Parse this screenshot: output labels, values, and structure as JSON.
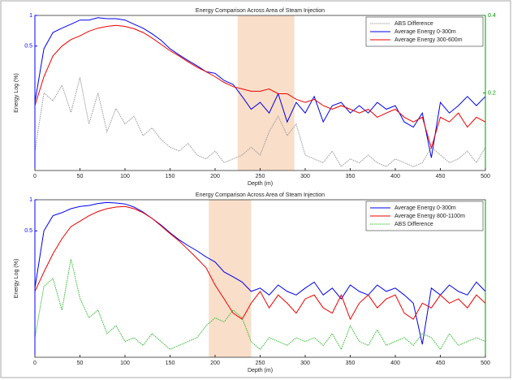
{
  "chart_data": [
    {
      "type": "line",
      "title": "Energy Comparison Across Area of Steam Injection",
      "xlabel": "Depth (m)",
      "ylabel": "Energy Log (%)",
      "x": [
        0,
        10,
        20,
        30,
        40,
        50,
        60,
        70,
        80,
        90,
        100,
        110,
        120,
        130,
        140,
        150,
        160,
        170,
        180,
        190,
        200,
        210,
        220,
        230,
        240,
        250,
        260,
        270,
        280,
        290,
        300,
        310,
        320,
        330,
        340,
        350,
        360,
        370,
        380,
        390,
        400,
        410,
        420,
        430,
        440,
        450,
        460,
        470,
        480,
        490,
        500
      ],
      "xlim": [
        0,
        500
      ],
      "xticks": [
        0,
        50,
        100,
        150,
        200,
        250,
        300,
        350,
        400,
        450,
        500
      ],
      "ylim": [
        0.03,
        1
      ],
      "yticks": [
        0.5,
        1
      ],
      "ylog": true,
      "ycolor": "#0000ff",
      "y2lim": [
        0,
        0.4
      ],
      "y2ticks": [
        0.2,
        0.4
      ],
      "y2color": "#009900",
      "highlight": [
        225,
        288
      ],
      "highlight_color": "#f8d8c0",
      "legend": "upper right",
      "series": [
        {
          "name": "ABS Difference",
          "color": "#999999",
          "style": "dotted",
          "axis": "y2",
          "values": [
            0.05,
            0.2,
            0.18,
            0.22,
            0.15,
            0.24,
            0.12,
            0.2,
            0.1,
            0.16,
            0.12,
            0.14,
            0.09,
            0.11,
            0.08,
            0.06,
            0.05,
            0.07,
            0.04,
            0.03,
            0.05,
            0.02,
            0.03,
            0.04,
            0.06,
            0.04,
            0.1,
            0.14,
            0.09,
            0.12,
            0.04,
            0.03,
            0.02,
            0.05,
            0.01,
            0.03,
            0.02,
            0.04,
            0.02,
            0.01,
            0.03,
            0.02,
            0.01,
            0.02,
            0.06,
            0.04,
            0.02,
            0.03,
            0.05,
            0.02,
            0.06
          ]
        },
        {
          "name": "Average Energy 0-300m",
          "color": "#0000ee",
          "style": "solid",
          "values": [
            0.14,
            0.47,
            0.68,
            0.75,
            0.82,
            0.9,
            0.9,
            0.95,
            0.93,
            0.93,
            0.9,
            0.82,
            0.75,
            0.66,
            0.57,
            0.47,
            0.41,
            0.36,
            0.32,
            0.28,
            0.27,
            0.23,
            0.21,
            0.16,
            0.12,
            0.14,
            0.11,
            0.17,
            0.09,
            0.14,
            0.11,
            0.16,
            0.09,
            0.13,
            0.14,
            0.11,
            0.13,
            0.11,
            0.14,
            0.12,
            0.13,
            0.09,
            0.08,
            0.11,
            0.04,
            0.14,
            0.11,
            0.13,
            0.16,
            0.13,
            0.16
          ]
        },
        {
          "name": "Average Energy 300-600m",
          "color": "#ee0000",
          "style": "solid",
          "values": [
            0.13,
            0.25,
            0.4,
            0.5,
            0.58,
            0.63,
            0.7,
            0.75,
            0.78,
            0.8,
            0.78,
            0.74,
            0.68,
            0.6,
            0.52,
            0.45,
            0.4,
            0.35,
            0.31,
            0.28,
            0.25,
            0.22,
            0.2,
            0.19,
            0.18,
            0.18,
            0.19,
            0.17,
            0.17,
            0.15,
            0.14,
            0.15,
            0.13,
            0.12,
            0.13,
            0.12,
            0.11,
            0.12,
            0.1,
            0.11,
            0.12,
            0.1,
            0.09,
            0.1,
            0.05,
            0.1,
            0.09,
            0.11,
            0.08,
            0.1,
            0.09
          ]
        }
      ]
    },
    {
      "type": "line",
      "title": "Energy Comparison Across Area of Steam Injection",
      "xlabel": "Depth (m)",
      "ylabel": "Energy Log (%)",
      "x": [
        0,
        10,
        20,
        30,
        40,
        50,
        60,
        70,
        80,
        90,
        100,
        110,
        120,
        130,
        140,
        150,
        160,
        170,
        180,
        190,
        200,
        210,
        220,
        230,
        240,
        250,
        260,
        270,
        280,
        290,
        300,
        310,
        320,
        330,
        340,
        350,
        360,
        370,
        380,
        390,
        400,
        410,
        420,
        430,
        440,
        450,
        460,
        470,
        480,
        490,
        500
      ],
      "xlim": [
        0,
        500
      ],
      "xticks": [
        0,
        50,
        100,
        150,
        200,
        250,
        300,
        350,
        400,
        450,
        500
      ],
      "ylim": [
        0.03,
        1
      ],
      "yticks": [
        0.5,
        1
      ],
      "ylog": true,
      "ycolor": "#0000ff",
      "y2lim": [
        0,
        0.4
      ],
      "y2color": "#009900",
      "highlight": [
        193,
        240
      ],
      "highlight_color": "#f8d8c0",
      "legend": "upper right",
      "series": [
        {
          "name": "Average Energy 0-300m",
          "color": "#0000ee",
          "style": "solid",
          "values": [
            0.14,
            0.5,
            0.7,
            0.75,
            0.82,
            0.86,
            0.88,
            0.92,
            0.94,
            0.93,
            0.91,
            0.85,
            0.76,
            0.66,
            0.57,
            0.48,
            0.41,
            0.36,
            0.32,
            0.28,
            0.25,
            0.2,
            0.18,
            0.16,
            0.13,
            0.14,
            0.12,
            0.15,
            0.13,
            0.12,
            0.14,
            0.16,
            0.12,
            0.14,
            0.11,
            0.15,
            0.13,
            0.12,
            0.15,
            0.13,
            0.14,
            0.12,
            0.1,
            0.04,
            0.14,
            0.12,
            0.15,
            0.13,
            0.12,
            0.16,
            0.13
          ]
        },
        {
          "name": "Average Energy 800-1100m",
          "color": "#ee0000",
          "style": "solid",
          "values": [
            0.13,
            0.2,
            0.3,
            0.42,
            0.55,
            0.62,
            0.7,
            0.77,
            0.82,
            0.85,
            0.86,
            0.82,
            0.75,
            0.66,
            0.56,
            0.47,
            0.4,
            0.33,
            0.27,
            0.22,
            0.15,
            0.11,
            0.08,
            0.07,
            0.1,
            0.13,
            0.09,
            0.12,
            0.1,
            0.08,
            0.11,
            0.12,
            0.09,
            0.08,
            0.12,
            0.07,
            0.1,
            0.12,
            0.09,
            0.11,
            0.12,
            0.08,
            0.07,
            0.1,
            0.09,
            0.12,
            0.1,
            0.11,
            0.09,
            0.12,
            0.1
          ]
        },
        {
          "name": "ABS Difference",
          "color": "#33bb33",
          "style": "dotted",
          "axis": "y2",
          "values": [
            0.05,
            0.18,
            0.2,
            0.12,
            0.25,
            0.15,
            0.1,
            0.12,
            0.06,
            0.08,
            0.04,
            0.05,
            0.03,
            0.06,
            0.04,
            0.02,
            0.03,
            0.04,
            0.05,
            0.08,
            0.1,
            0.09,
            0.12,
            0.1,
            0.04,
            0.02,
            0.05,
            0.04,
            0.03,
            0.05,
            0.04,
            0.05,
            0.03,
            0.06,
            0.02,
            0.08,
            0.04,
            0.03,
            0.07,
            0.03,
            0.04,
            0.05,
            0.03,
            0.06,
            0.05,
            0.02,
            0.06,
            0.03,
            0.04,
            0.05,
            0.04
          ]
        }
      ]
    }
  ]
}
